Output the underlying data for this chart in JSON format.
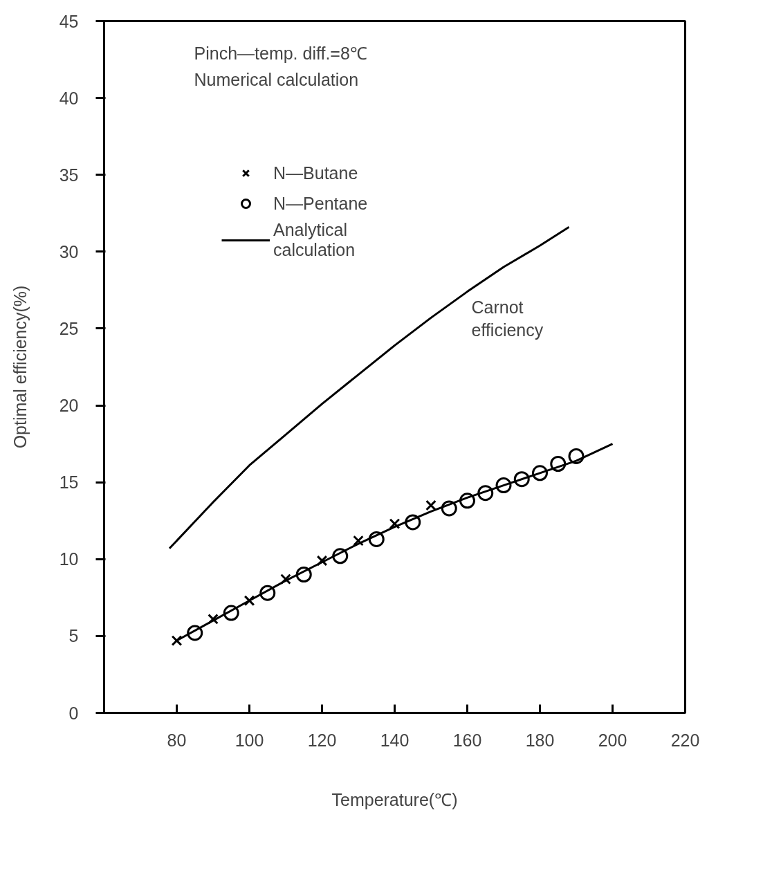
{
  "chart_data": {
    "type": "scatter",
    "xlabel": "Temperature(℃)",
    "ylabel": "Optimal efficiency(%)",
    "xlim": [
      60,
      220
    ],
    "xticks": [
      80,
      100,
      120,
      140,
      160,
      180,
      200,
      220
    ],
    "ylim": [
      0,
      45
    ],
    "yticks": [
      0,
      5,
      10,
      15,
      20,
      25,
      30,
      35,
      40,
      45
    ],
    "grid": false,
    "legend": "top left",
    "annotations": [
      "Pinch—temp. diff.=8℃",
      "Numerical calculation",
      {
        "text": "Carnot\nefficiency",
        "x": 160,
        "y": 27.4
      }
    ],
    "series": [
      {
        "name": "N—Butane",
        "type": "scatter",
        "marker": "cross",
        "color": "#000000",
        "x": [
          80,
          90,
          100,
          110,
          120,
          130,
          140,
          150
        ],
        "values": [
          4.7,
          6.1,
          7.3,
          8.7,
          9.9,
          11.2,
          12.3,
          13.5
        ]
      },
      {
        "name": "N—Pentane",
        "type": "scatter",
        "marker": "circle",
        "color": "#000000",
        "x": [
          85,
          95,
          105,
          115,
          125,
          135,
          145,
          155,
          160,
          165,
          170,
          175,
          180,
          185,
          190
        ],
        "values": [
          5.2,
          6.5,
          7.8,
          9.0,
          10.2,
          11.3,
          12.4,
          13.3,
          13.8,
          14.3,
          14.8,
          15.2,
          15.6,
          16.2,
          16.7
        ]
      },
      {
        "name": "Analytical\ncalculation",
        "type": "line",
        "marker": "none",
        "line_style": "solid",
        "color": "#000000",
        "x": [
          80,
          90,
          100,
          110,
          120,
          130,
          140,
          150,
          160,
          170,
          180,
          190,
          200
        ],
        "values": [
          4.7,
          6.0,
          7.3,
          8.6,
          9.8,
          11.0,
          12.1,
          13.1,
          14.0,
          14.8,
          15.6,
          16.4,
          17.5
        ]
      },
      {
        "type": "line",
        "marker": "none",
        "line_style": "solid",
        "color": "#000000",
        "x": [
          78,
          90,
          100,
          110,
          120,
          130,
          140,
          150,
          160,
          170,
          180,
          188
        ],
        "values": [
          10.7,
          13.7,
          16.1,
          18.1,
          20.1,
          22.0,
          23.9,
          25.7,
          27.4,
          29.0,
          30.4,
          31.6
        ]
      }
    ]
  }
}
